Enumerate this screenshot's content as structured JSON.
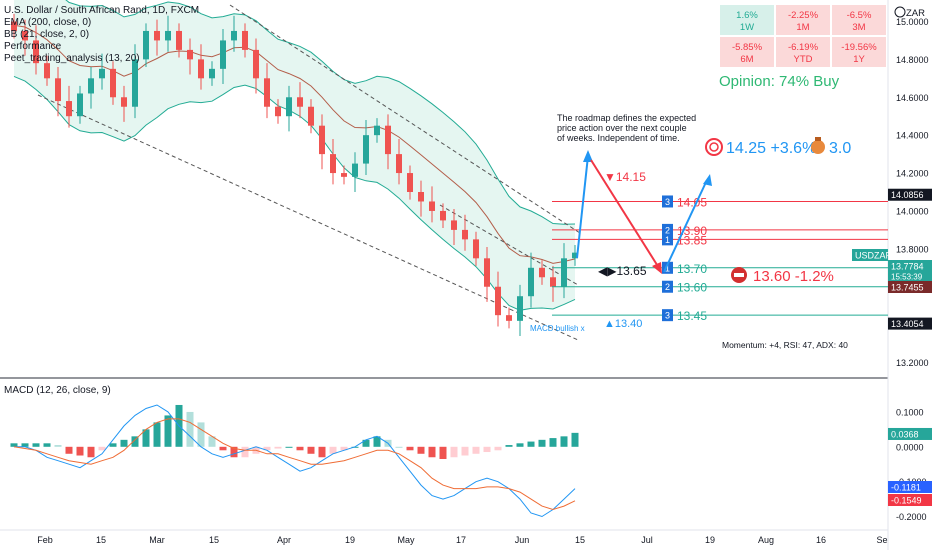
{
  "header": {
    "symbol_title": "U.S. Dollar / South African Rand, 1D, FXCM",
    "indicators": [
      "EMA (200, close, 0)",
      "BB (21, close, 2, 0)",
      "Performance",
      "Peet_trading_analysis (13, 20)"
    ],
    "currency": "ZAR"
  },
  "performance": [
    {
      "value": "1.6%",
      "period": "1W",
      "positive": true
    },
    {
      "value": "-2.25%",
      "period": "1M",
      "positive": false
    },
    {
      "value": "-6.5%",
      "period": "3M",
      "positive": false
    },
    {
      "value": "-5.85%",
      "period": "6M",
      "positive": false
    },
    {
      "value": "-6.19%",
      "period": "YTD",
      "positive": false
    },
    {
      "value": "-19.56%",
      "period": "1Y",
      "positive": false
    }
  ],
  "opinion": "Opinion: 74% Buy",
  "roadmap_note": [
    "The roadmap defines the expected",
    "price action over the next couple",
    "of weeks. Independent of time."
  ],
  "target": {
    "text": "14.25 +3.6%",
    "bag_value": "3.0"
  },
  "annotations": {
    "high_target": "▼14.15",
    "pivot": "◀▶13.65",
    "stop": "13.60 -1.2%",
    "low_marker": "▲13.40",
    "macd_bullish": "MACD bullish x",
    "momentum": "Momentum: +4, RSI: 47, ADX: 40"
  },
  "levels": [
    {
      "num": "3",
      "label": "14.05",
      "value": 14.05,
      "color": "#f23645"
    },
    {
      "num": "2",
      "label": "13.90",
      "value": 13.9,
      "color": "#f23645"
    },
    {
      "num": "1",
      "label": "13.85",
      "value": 13.85,
      "color": "#f23645"
    },
    {
      "num": "1",
      "label": "13.70",
      "value": 13.7,
      "color": "#22ab94"
    },
    {
      "num": "2",
      "label": "13.60",
      "value": 13.6,
      "color": "#22ab94"
    },
    {
      "num": "3",
      "label": "13.45",
      "value": 13.45,
      "color": "#22ab94"
    }
  ],
  "price_axis": {
    "ticks": [
      "15.0000",
      "14.8000",
      "14.6000",
      "14.4000",
      "14.2000",
      "14.0000",
      "13.8000",
      "13.6000",
      "13.4000",
      "13.2000"
    ],
    "tick_values": [
      15.0,
      14.8,
      14.6,
      14.4,
      14.2,
      14.0,
      13.8,
      13.6,
      13.4,
      13.2
    ],
    "ymin": 13.15,
    "ymax": 15.05,
    "badges": [
      {
        "text": "14.0856",
        "value": 14.0856,
        "color": "#131722"
      },
      {
        "text": "USDZAR",
        "value": 13.82,
        "color": "#26a69a"
      },
      {
        "text": "13.7784",
        "value": 13.7784,
        "color": "#26a69a"
      },
      {
        "text": "15:53:39",
        "value": 13.7784,
        "color": "#26a69a"
      },
      {
        "text": "13.7455",
        "value": 13.7455,
        "color": "#7a2a2a"
      },
      {
        "text": "13.4054",
        "value": 13.4054,
        "color": "#131722"
      }
    ]
  },
  "macd": {
    "title": "MACD (12, 26, close, 9)",
    "ticks": [
      "0.1000",
      "0.0000",
      "-0.1000",
      "-0.2000"
    ],
    "tick_values": [
      0.1,
      0.0,
      -0.1,
      -0.2
    ],
    "badges": [
      {
        "text": "0.0368",
        "value": 0.0368,
        "color": "#26a69a"
      },
      {
        "text": "-0.1181",
        "value": -0.1181,
        "color": "#2962ff"
      },
      {
        "text": "-0.1549",
        "value": -0.1549,
        "color": "#f23645"
      }
    ]
  },
  "time_axis": [
    "Feb",
    "15",
    "Mar",
    "15",
    "Apr",
    "19",
    "May",
    "17",
    "Jun",
    "15",
    "Jul",
    "19",
    "Aug",
    "16",
    "Se"
  ],
  "chart_data": {
    "type": "candlestick",
    "symbol": "USDZAR",
    "interval": "1D",
    "x_range": [
      "2021-01-25",
      "2021-06-15"
    ],
    "ylim": [
      13.15,
      15.05
    ],
    "close_path": [
      14.95,
      14.9,
      14.78,
      14.7,
      14.58,
      14.5,
      14.62,
      14.7,
      14.75,
      14.6,
      14.55,
      14.8,
      14.95,
      14.9,
      14.95,
      14.85,
      14.8,
      14.7,
      14.75,
      14.9,
      14.95,
      14.85,
      14.7,
      14.55,
      14.5,
      14.6,
      14.55,
      14.45,
      14.3,
      14.2,
      14.18,
      14.25,
      14.4,
      14.45,
      14.3,
      14.2,
      14.1,
      14.05,
      14.0,
      13.95,
      13.9,
      13.85,
      13.75,
      13.6,
      13.45,
      13.42,
      13.55,
      13.7,
      13.65,
      13.6,
      13.75,
      13.78
    ],
    "macd_histogram": [
      0.01,
      0.01,
      0.01,
      0.01,
      0.005,
      -0.02,
      -0.025,
      -0.03,
      -0.01,
      0.01,
      0.02,
      0.03,
      0.05,
      0.07,
      0.09,
      0.12,
      0.1,
      0.07,
      0.03,
      -0.01,
      -0.03,
      -0.03,
      -0.02,
      -0.01,
      -0.005,
      0.0,
      -0.01,
      -0.02,
      -0.03,
      -0.02,
      -0.01,
      0.0,
      0.02,
      0.03,
      0.02,
      0.0,
      -0.01,
      -0.02,
      -0.03,
      -0.035,
      -0.03,
      -0.025,
      -0.02,
      -0.015,
      -0.01,
      0.005,
      0.01,
      0.015,
      0.02,
      0.025,
      0.03,
      0.04
    ],
    "macd_line": [
      0.0,
      0.0,
      -0.01,
      -0.03,
      -0.04,
      -0.05,
      -0.06,
      -0.04,
      -0.02,
      0.02,
      0.06,
      0.09,
      0.11,
      0.12,
      0.1,
      0.06,
      0.03,
      0.0,
      -0.02,
      -0.03,
      -0.02,
      -0.01,
      0.0,
      -0.01,
      -0.03,
      -0.05,
      -0.07,
      -0.06,
      -0.04,
      -0.02,
      -0.01,
      0.0,
      0.02,
      0.03,
      0.01,
      -0.03,
      -0.07,
      -0.11,
      -0.14,
      -0.15,
      -0.14,
      -0.12,
      -0.1,
      -0.09,
      -0.1,
      -0.12,
      -0.15,
      -0.19,
      -0.2,
      -0.18,
      -0.15,
      -0.12
    ],
    "signal_line": [
      0.0,
      -0.005,
      -0.01,
      -0.02,
      -0.03,
      -0.04,
      -0.045,
      -0.05,
      -0.04,
      -0.03,
      -0.01,
      0.02,
      0.05,
      0.07,
      0.08,
      0.08,
      0.07,
      0.05,
      0.03,
      0.01,
      -0.005,
      -0.01,
      -0.01,
      -0.02,
      -0.02,
      -0.03,
      -0.04,
      -0.05,
      -0.05,
      -0.045,
      -0.04,
      -0.03,
      -0.02,
      -0.01,
      -0.01,
      -0.02,
      -0.04,
      -0.06,
      -0.09,
      -0.11,
      -0.12,
      -0.12,
      -0.12,
      -0.115,
      -0.115,
      -0.12,
      -0.13,
      -0.15,
      -0.17,
      -0.18,
      -0.17,
      -0.155
    ]
  }
}
